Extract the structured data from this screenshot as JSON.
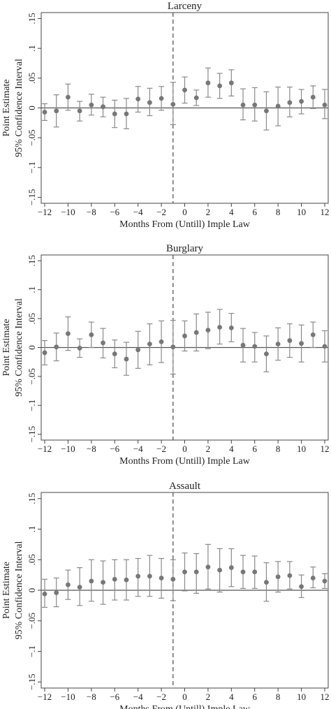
{
  "chart_data": [
    {
      "type": "scatter",
      "title": "Larceny",
      "xlabel": "Months From (Untill) Imple Law",
      "ylabel": [
        "Point Estimate",
        "95% Confidence Interval"
      ],
      "xlim": [
        -12.3,
        12.3
      ],
      "ylim": [
        -0.16,
        0.16
      ],
      "xticks": [
        -12,
        -10,
        -8,
        -6,
        -4,
        -2,
        0,
        2,
        4,
        6,
        8,
        10,
        12
      ],
      "xtick_labels": [
        "−12",
        "−10",
        "−8",
        "−6",
        "−4",
        "−2",
        "0",
        "2",
        "4",
        "6",
        "8",
        "10",
        "12"
      ],
      "yticks": [
        -0.15,
        -0.1,
        -0.05,
        0,
        0.05,
        0.1,
        0.15
      ],
      "ytick_labels": [
        "−.15",
        "−.1",
        "−.05",
        "0",
        ".05",
        ".1",
        ".15"
      ],
      "reference_line_y": 0,
      "vertical_dashed_line_x": -1,
      "x": [
        -12,
        -11,
        -10,
        -9,
        -8,
        -7,
        -6,
        -5,
        -4,
        -3,
        -2,
        -1,
        0,
        1,
        2,
        3,
        4,
        5,
        6,
        7,
        8,
        9,
        10,
        11,
        12
      ],
      "estimate": [
        -0.007,
        -0.005,
        0.018,
        -0.005,
        0.005,
        0.002,
        -0.01,
        -0.01,
        0.015,
        0.009,
        0.016,
        0.006,
        0.03,
        0.017,
        0.042,
        0.037,
        0.042,
        0.005,
        0.005,
        -0.005,
        0.003,
        0.009,
        0.011,
        0.018,
        0.005
      ],
      "ci_low": [
        -0.021,
        -0.032,
        -0.004,
        -0.022,
        -0.012,
        -0.015,
        -0.033,
        -0.035,
        -0.007,
        -0.013,
        -0.004,
        -0.028,
        0.008,
        0.004,
        0.018,
        0.016,
        0.02,
        -0.02,
        -0.022,
        -0.037,
        -0.03,
        -0.015,
        -0.01,
        -0.001,
        -0.018
      ],
      "ci_high": [
        0.007,
        0.022,
        0.04,
        0.011,
        0.023,
        0.018,
        0.013,
        0.016,
        0.036,
        0.033,
        0.036,
        0.043,
        0.052,
        0.03,
        0.067,
        0.058,
        0.064,
        0.032,
        0.034,
        0.027,
        0.035,
        0.035,
        0.031,
        0.037,
        0.031
      ],
      "marker_color": "#777777"
    },
    {
      "type": "scatter",
      "title": "Burglary",
      "xlabel": "Months From (Untill) Imple Law",
      "ylabel": [
        "Point Estimate",
        "95% Confidence Interval"
      ],
      "xlim": [
        -12.3,
        12.3
      ],
      "ylim": [
        -0.16,
        0.16
      ],
      "xticks": [
        -12,
        -10,
        -8,
        -6,
        -4,
        -2,
        0,
        2,
        4,
        6,
        8,
        10,
        12
      ],
      "xtick_labels": [
        "−12",
        "−10",
        "−8",
        "−6",
        "−4",
        "−2",
        "0",
        "2",
        "4",
        "6",
        "8",
        "10",
        "12"
      ],
      "yticks": [
        -0.15,
        -0.1,
        -0.05,
        0,
        0.05,
        0.1,
        0.15
      ],
      "ytick_labels": [
        "−.15",
        "−.1",
        "−.05",
        "0",
        ".05",
        ".1",
        ".15"
      ],
      "reference_line_y": 0,
      "vertical_dashed_line_x": -1,
      "x": [
        -12,
        -11,
        -10,
        -9,
        -8,
        -7,
        -6,
        -5,
        -4,
        -3,
        -2,
        -1,
        0,
        1,
        2,
        3,
        4,
        5,
        6,
        7,
        8,
        9,
        10,
        11,
        12
      ],
      "estimate": [
        -0.009,
        0.001,
        0.024,
        -0.001,
        0.022,
        0.008,
        -0.011,
        -0.02,
        -0.004,
        0.006,
        0.01,
        0.001,
        0.02,
        0.026,
        0.03,
        0.035,
        0.034,
        0.004,
        0.002,
        -0.011,
        0.006,
        0.012,
        0.007,
        0.022,
        0.002
      ],
      "ci_low": [
        -0.03,
        -0.023,
        -0.005,
        -0.017,
        0.0,
        -0.018,
        -0.035,
        -0.048,
        -0.036,
        -0.03,
        -0.026,
        -0.046,
        -0.006,
        -0.006,
        -0.002,
        0.006,
        0.01,
        -0.025,
        -0.025,
        -0.042,
        -0.022,
        -0.017,
        -0.025,
        0.0,
        -0.025
      ],
      "ci_high": [
        0.012,
        0.025,
        0.053,
        0.015,
        0.044,
        0.033,
        0.013,
        0.009,
        0.028,
        0.041,
        0.046,
        0.047,
        0.046,
        0.058,
        0.061,
        0.066,
        0.059,
        0.033,
        0.026,
        0.02,
        0.034,
        0.041,
        0.039,
        0.044,
        0.029
      ],
      "marker_color": "#777777"
    },
    {
      "type": "scatter",
      "title": "Assault",
      "xlabel": "Months From (Untill) Imple Law",
      "ylabel": [
        "Point Estimate",
        "95% Confidence Interval"
      ],
      "xlim": [
        -12.3,
        12.3
      ],
      "ylim": [
        -0.16,
        0.16
      ],
      "xticks": [
        -12,
        -10,
        -8,
        -6,
        -4,
        -2,
        0,
        2,
        4,
        6,
        8,
        10,
        12
      ],
      "xtick_labels": [
        "−12",
        "−10",
        "−8",
        "−6",
        "−4",
        "−2",
        "0",
        "2",
        "4",
        "6",
        "8",
        "10",
        "12"
      ],
      "yticks": [
        -0.15,
        -0.1,
        -0.05,
        0,
        0.05,
        0.1,
        0.15
      ],
      "ytick_labels": [
        "−.15",
        "−.1",
        "−.05",
        "0",
        ".05",
        ".1",
        ".15"
      ],
      "reference_line_y": 0,
      "vertical_dashed_line_x": -1,
      "x": [
        -12,
        -11,
        -10,
        -9,
        -8,
        -7,
        -6,
        -5,
        -4,
        -3,
        -2,
        -1,
        0,
        1,
        2,
        3,
        4,
        5,
        6,
        7,
        8,
        9,
        10,
        11,
        12
      ],
      "estimate": [
        -0.006,
        -0.004,
        0.009,
        0.005,
        0.015,
        0.013,
        0.018,
        0.017,
        0.023,
        0.023,
        0.02,
        0.018,
        0.03,
        0.03,
        0.038,
        0.033,
        0.037,
        0.03,
        0.03,
        0.013,
        0.022,
        0.024,
        0.006,
        0.02,
        0.015
      ],
      "ci_low": [
        -0.028,
        -0.027,
        -0.015,
        -0.025,
        -0.018,
        -0.023,
        -0.016,
        -0.016,
        -0.01,
        -0.01,
        -0.013,
        -0.017,
        -0.001,
        -0.005,
        0.002,
        -0.003,
        0.006,
        0.003,
        0.003,
        -0.018,
        -0.003,
        0.002,
        -0.012,
        0.004,
        0.003
      ],
      "ci_high": [
        0.018,
        0.02,
        0.033,
        0.037,
        0.05,
        0.048,
        0.05,
        0.05,
        0.052,
        0.057,
        0.052,
        0.05,
        0.061,
        0.06,
        0.075,
        0.068,
        0.068,
        0.057,
        0.056,
        0.045,
        0.047,
        0.047,
        0.025,
        0.038,
        0.027
      ],
      "marker_color": "#777777"
    }
  ]
}
